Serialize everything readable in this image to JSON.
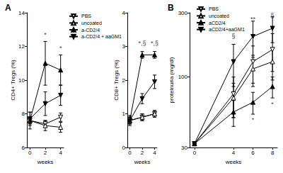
{
  "chart_data": [
    {
      "type": "line",
      "title": "A",
      "xlabel": "weeks",
      "ylabel": "CD4+ Tregs (%)",
      "x": [
        0,
        2,
        4
      ],
      "xlim": [
        -0.4,
        4.4
      ],
      "xticks": [
        0,
        2,
        4
      ],
      "ylim": [
        6,
        14
      ],
      "yticks": [
        6,
        8,
        10,
        12,
        14
      ],
      "legend": "right",
      "series": [
        {
          "name": "PBS",
          "color": "#000000",
          "marker": "triangle-down-open",
          "values": [
            7.6,
            7.4,
            7.8
          ],
          "errors": [
            0.2,
            0.2,
            0.25
          ]
        },
        {
          "name": "uncoated",
          "color": "#000000",
          "marker": "triangle-up-open",
          "values": [
            7.6,
            7.3,
            7.2
          ],
          "errors": [
            0.2,
            0.3,
            0.3
          ]
        },
        {
          "name": "a-CD2/4",
          "color": "#000000",
          "marker": "triangle-up",
          "values": [
            7.6,
            11.0,
            10.6
          ],
          "errors": [
            0.5,
            1.3,
            0.9
          ]
        },
        {
          "name": "a-CD2/4 + aaGM1",
          "color": "#000000",
          "marker": "triangle-down",
          "values": [
            7.7,
            8.6,
            9.1
          ],
          "errors": [
            0.4,
            0.7,
            0.6
          ]
        }
      ],
      "annotations": [
        {
          "text": "*",
          "x": 2,
          "y": 12.7
        },
        {
          "text": "*",
          "x": 4,
          "y": 11.9
        }
      ]
    },
    {
      "type": "line",
      "xlabel": "weeks",
      "ylabel": "CD8+ Tregs (%)",
      "x": [
        0,
        2,
        4
      ],
      "xlim": [
        -0.4,
        4.4
      ],
      "xticks": [
        0,
        2,
        4
      ],
      "ylim": [
        0,
        4
      ],
      "yticks": [
        0,
        1,
        2,
        3,
        4
      ],
      "series": [
        {
          "name": "PBS",
          "color": "#000000",
          "marker": "triangle-down-open",
          "values": [
            0.8,
            0.9,
            1.0
          ],
          "errors": [
            0.1,
            0.1,
            0.1
          ]
        },
        {
          "name": "uncoated",
          "color": "#000000",
          "marker": "triangle-up-open",
          "values": [
            0.8,
            0.9,
            1.0
          ],
          "errors": [
            0.1,
            0.1,
            0.1
          ]
        },
        {
          "name": "a-CD2/4",
          "color": "#000000",
          "marker": "triangle-up",
          "values": [
            0.8,
            2.75,
            2.75
          ],
          "errors": [
            0.1,
            0.1,
            0.1
          ]
        },
        {
          "name": "a-CD2/4 + aaGM1",
          "color": "#000000",
          "marker": "triangle-down",
          "values": [
            0.8,
            1.45,
            1.95
          ],
          "errors": [
            0.15,
            0.15,
            0.2
          ]
        }
      ],
      "annotations": [
        {
          "text": "*,§",
          "x": 2,
          "y": 3.1
        },
        {
          "text": "*,§",
          "x": 4,
          "y": 3.1
        }
      ]
    },
    {
      "type": "line",
      "title": "B",
      "xlabel": "weeks",
      "ylabel": "proteinuria (mg/dl)",
      "x": [
        0,
        4,
        6,
        8
      ],
      "xlim": [
        -0.5,
        8.5
      ],
      "xticks": [
        0,
        4,
        6,
        8
      ],
      "ylim": [
        30,
        300
      ],
      "yticks": [
        30,
        100,
        300
      ],
      "log": "y",
      "legend": "top-left",
      "series": [
        {
          "name": "PBS",
          "color": "#000000",
          "marker": "triangle-down-open",
          "values": [
            32,
            75,
            130,
            160
          ],
          "errors": [
            0,
            25,
            40,
            50
          ]
        },
        {
          "name": "uncoated",
          "color": "#000000",
          "marker": "triangle-up-open",
          "values": [
            32,
            70,
            115,
            130
          ],
          "errors": [
            0,
            20,
            30,
            35
          ]
        },
        {
          "name": "aCD2/4",
          "color": "#000000",
          "marker": "triangle-up",
          "values": [
            32,
            55,
            65,
            85
          ],
          "errors": [
            0,
            12,
            12,
            15
          ]
        },
        {
          "name": "aCD2/4+aaGM1",
          "color": "#000000",
          "marker": "triangle-down",
          "values": [
            32,
            130,
            200,
            230
          ],
          "errors": [
            0,
            45,
            60,
            50
          ]
        }
      ],
      "annotations": [
        {
          "text": "§",
          "x": 4,
          "y": 200
        },
        {
          "text": "**",
          "x": 6,
          "y": 270
        },
        {
          "text": "§",
          "x": 8,
          "y": 285
        },
        {
          "text": "*",
          "x": 6,
          "y": 48
        },
        {
          "text": "*",
          "x": 8,
          "y": 63
        }
      ]
    }
  ]
}
